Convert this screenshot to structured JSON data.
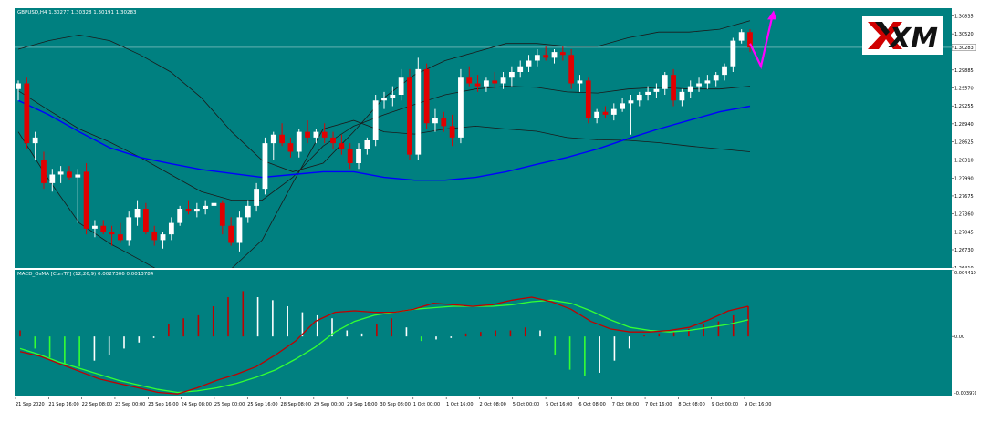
{
  "chart_header": {
    "symbol_line": "GBPUSD,H4  1.30277 1.30328 1.30191 1.30283"
  },
  "indicator_header": {
    "line": "MACD_OsMA [CurrTF] (12,26,9) 0.0027306 0.0013784"
  },
  "brand": {
    "logo_text": "XM"
  },
  "colors": {
    "background": "#008080",
    "bull_candle": "#ffffff",
    "bear_candle": "#e00000",
    "bollinger": "#1a1a1a",
    "moving_average": "#0000ff",
    "macd_line": "#c00000",
    "signal_line": "#33ff33",
    "histogram_rising": "#c00000",
    "histogram_falling": "#ffffff",
    "histogram_green": "#33ff33",
    "forecast_arrow": "#ff00ff"
  },
  "chart_data": [
    {
      "type": "candlestick",
      "title": "GBPUSD,H4",
      "price_axis_ticks": [
        "1.30835",
        "1.30520",
        "1.30283",
        "1.29885",
        "1.29570",
        "1.29255",
        "1.28940",
        "1.28625",
        "1.28310",
        "1.27990",
        "1.27675",
        "1.27360",
        "1.27045",
        "1.26730",
        "1.26410"
      ],
      "ylim": [
        1.2641,
        1.3097
      ],
      "current_price": "1.30283",
      "x_ticks": [
        "21 Sep 2020",
        "21 Sep 16:00",
        "22 Sep 08:00",
        "23 Sep 00:00",
        "23 Sep 16:00",
        "24 Sep 08:00",
        "25 Sep 00:00",
        "25 Sep 16:00",
        "28 Sep 08:00",
        "29 Sep 00:00",
        "29 Sep 16:00",
        "30 Sep 08:00",
        "1 Oct 00:00",
        "1 Oct 16:00",
        "2 Oct 08:00",
        "5 Oct 00:00",
        "5 Oct 16:00",
        "6 Oct 08:00",
        "7 Oct 00:00",
        "7 Oct 16:00",
        "8 Oct 08:00",
        "9 Oct 00:00",
        "9 Oct 16:00"
      ],
      "bollinger_upper": [
        1.3025,
        1.304,
        1.305,
        1.304,
        1.3015,
        1.2985,
        1.294,
        1.288,
        1.283,
        1.281,
        1.2825,
        1.288,
        1.294,
        1.298,
        1.3005,
        1.302,
        1.3035,
        1.3035,
        1.303,
        1.303,
        1.3045,
        1.3055,
        1.3055,
        1.306,
        1.3075
      ],
      "bollinger_middle": [
        1.2952,
        1.2918,
        1.2885,
        1.2862,
        1.2835,
        1.2805,
        1.2775,
        1.276,
        1.276,
        1.28,
        1.2855,
        1.289,
        1.291,
        1.2928,
        1.2945,
        1.2955,
        1.296,
        1.2958,
        1.295,
        1.2948,
        1.2955,
        1.2958,
        1.2955,
        1.2955,
        1.296
      ],
      "bollinger_lower": [
        1.288,
        1.2796,
        1.272,
        1.2684,
        1.2655,
        1.2625,
        1.261,
        1.264,
        1.269,
        1.279,
        1.2885,
        1.29,
        1.288,
        1.2876,
        1.2885,
        1.289,
        1.2885,
        1.2881,
        1.287,
        1.2866,
        1.2865,
        1.2861,
        1.2855,
        1.285,
        1.2845
      ],
      "moving_average": [
        1.2935,
        1.291,
        1.288,
        1.2852,
        1.2835,
        1.2824,
        1.2814,
        1.2807,
        1.28,
        1.2805,
        1.281,
        1.281,
        1.28,
        1.2795,
        1.2795,
        1.28,
        1.281,
        1.2823,
        1.2835,
        1.285,
        1.2868,
        1.2885,
        1.29,
        1.2915,
        1.2925
      ],
      "candles": [
        {
          "o": 1.2955,
          "h": 1.297,
          "l": 1.2935,
          "c": 1.2965
        },
        {
          "o": 1.2965,
          "h": 1.2975,
          "l": 1.285,
          "c": 1.286
        },
        {
          "o": 1.286,
          "h": 1.288,
          "l": 1.283,
          "c": 1.287
        },
        {
          "o": 1.283,
          "h": 1.2845,
          "l": 1.278,
          "c": 1.279
        },
        {
          "o": 1.279,
          "h": 1.2815,
          "l": 1.2775,
          "c": 1.2805
        },
        {
          "o": 1.2805,
          "h": 1.282,
          "l": 1.279,
          "c": 1.281
        },
        {
          "o": 1.281,
          "h": 1.282,
          "l": 1.2795,
          "c": 1.28
        },
        {
          "o": 1.28,
          "h": 1.2815,
          "l": 1.272,
          "c": 1.2805
        },
        {
          "o": 1.281,
          "h": 1.2825,
          "l": 1.27,
          "c": 1.271
        },
        {
          "o": 1.271,
          "h": 1.2725,
          "l": 1.2695,
          "c": 1.2715
        },
        {
          "o": 1.2715,
          "h": 1.2725,
          "l": 1.27,
          "c": 1.2705
        },
        {
          "o": 1.2705,
          "h": 1.2715,
          "l": 1.268,
          "c": 1.27
        },
        {
          "o": 1.27,
          "h": 1.272,
          "l": 1.2685,
          "c": 1.269
        },
        {
          "o": 1.269,
          "h": 1.274,
          "l": 1.268,
          "c": 1.273
        },
        {
          "o": 1.273,
          "h": 1.276,
          "l": 1.2715,
          "c": 1.2745
        },
        {
          "o": 1.2745,
          "h": 1.2755,
          "l": 1.27,
          "c": 1.2705
        },
        {
          "o": 1.2705,
          "h": 1.2715,
          "l": 1.268,
          "c": 1.269
        },
        {
          "o": 1.269,
          "h": 1.2705,
          "l": 1.2675,
          "c": 1.27
        },
        {
          "o": 1.27,
          "h": 1.273,
          "l": 1.269,
          "c": 1.272
        },
        {
          "o": 1.272,
          "h": 1.275,
          "l": 1.2715,
          "c": 1.2745
        },
        {
          "o": 1.2745,
          "h": 1.276,
          "l": 1.2735,
          "c": 1.274
        },
        {
          "o": 1.274,
          "h": 1.2755,
          "l": 1.273,
          "c": 1.2745
        },
        {
          "o": 1.2745,
          "h": 1.276,
          "l": 1.2735,
          "c": 1.275
        },
        {
          "o": 1.275,
          "h": 1.277,
          "l": 1.274,
          "c": 1.2755
        },
        {
          "o": 1.2755,
          "h": 1.276,
          "l": 1.27,
          "c": 1.2715
        },
        {
          "o": 1.2715,
          "h": 1.273,
          "l": 1.268,
          "c": 1.2685
        },
        {
          "o": 1.2685,
          "h": 1.274,
          "l": 1.267,
          "c": 1.273
        },
        {
          "o": 1.273,
          "h": 1.276,
          "l": 1.272,
          "c": 1.275
        },
        {
          "o": 1.275,
          "h": 1.279,
          "l": 1.274,
          "c": 1.278
        },
        {
          "o": 1.278,
          "h": 1.287,
          "l": 1.277,
          "c": 1.286
        },
        {
          "o": 1.286,
          "h": 1.288,
          "l": 1.283,
          "c": 1.2875
        },
        {
          "o": 1.2875,
          "h": 1.2895,
          "l": 1.2855,
          "c": 1.286
        },
        {
          "o": 1.286,
          "h": 1.287,
          "l": 1.2835,
          "c": 1.2845
        },
        {
          "o": 1.2845,
          "h": 1.2885,
          "l": 1.2835,
          "c": 1.288
        },
        {
          "o": 1.288,
          "h": 1.29,
          "l": 1.286,
          "c": 1.287
        },
        {
          "o": 1.287,
          "h": 1.2885,
          "l": 1.286,
          "c": 1.288
        },
        {
          "o": 1.288,
          "h": 1.2895,
          "l": 1.286,
          "c": 1.287
        },
        {
          "o": 1.287,
          "h": 1.288,
          "l": 1.285,
          "c": 1.286
        },
        {
          "o": 1.286,
          "h": 1.2875,
          "l": 1.284,
          "c": 1.285
        },
        {
          "o": 1.285,
          "h": 1.286,
          "l": 1.2815,
          "c": 1.2825
        },
        {
          "o": 1.2825,
          "h": 1.286,
          "l": 1.2815,
          "c": 1.285
        },
        {
          "o": 1.285,
          "h": 1.287,
          "l": 1.284,
          "c": 1.2865
        },
        {
          "o": 1.2865,
          "h": 1.2945,
          "l": 1.2855,
          "c": 1.2935
        },
        {
          "o": 1.2935,
          "h": 1.295,
          "l": 1.292,
          "c": 1.294
        },
        {
          "o": 1.294,
          "h": 1.296,
          "l": 1.2925,
          "c": 1.2945
        },
        {
          "o": 1.2945,
          "h": 1.299,
          "l": 1.2935,
          "c": 1.2975
        },
        {
          "o": 1.2975,
          "h": 1.299,
          "l": 1.283,
          "c": 1.284
        },
        {
          "o": 1.284,
          "h": 1.301,
          "l": 1.283,
          "c": 1.299
        },
        {
          "o": 1.299,
          "h": 1.3,
          "l": 1.2885,
          "c": 1.2895
        },
        {
          "o": 1.2895,
          "h": 1.292,
          "l": 1.288,
          "c": 1.2905
        },
        {
          "o": 1.2905,
          "h": 1.2915,
          "l": 1.288,
          "c": 1.289
        },
        {
          "o": 1.289,
          "h": 1.291,
          "l": 1.2855,
          "c": 1.287
        },
        {
          "o": 1.287,
          "h": 1.299,
          "l": 1.286,
          "c": 1.2975
        },
        {
          "o": 1.2975,
          "h": 1.2995,
          "l": 1.296,
          "c": 1.2965
        },
        {
          "o": 1.2965,
          "h": 1.298,
          "l": 1.295,
          "c": 1.296
        },
        {
          "o": 1.296,
          "h": 1.2975,
          "l": 1.295,
          "c": 1.297
        },
        {
          "o": 1.297,
          "h": 1.2985,
          "l": 1.2955,
          "c": 1.2965
        },
        {
          "o": 1.2965,
          "h": 1.2985,
          "l": 1.2955,
          "c": 1.2975
        },
        {
          "o": 1.2975,
          "h": 1.2995,
          "l": 1.296,
          "c": 1.2985
        },
        {
          "o": 1.2985,
          "h": 1.3005,
          "l": 1.2975,
          "c": 1.2995
        },
        {
          "o": 1.2995,
          "h": 1.3015,
          "l": 1.2985,
          "c": 1.3005
        },
        {
          "o": 1.3005,
          "h": 1.3025,
          "l": 1.2995,
          "c": 1.3015
        },
        {
          "o": 1.3015,
          "h": 1.303,
          "l": 1.3005,
          "c": 1.301
        },
        {
          "o": 1.301,
          "h": 1.3025,
          "l": 1.3,
          "c": 1.302
        },
        {
          "o": 1.302,
          "h": 1.303,
          "l": 1.3005,
          "c": 1.3015
        },
        {
          "o": 1.3015,
          "h": 1.3025,
          "l": 1.2955,
          "c": 1.2965
        },
        {
          "o": 1.2965,
          "h": 1.298,
          "l": 1.295,
          "c": 1.297
        },
        {
          "o": 1.297,
          "h": 1.2975,
          "l": 1.2895,
          "c": 1.2905
        },
        {
          "o": 1.2905,
          "h": 1.292,
          "l": 1.2895,
          "c": 1.2915
        },
        {
          "o": 1.2915,
          "h": 1.2925,
          "l": 1.2905,
          "c": 1.291
        },
        {
          "o": 1.291,
          "h": 1.293,
          "l": 1.29,
          "c": 1.292
        },
        {
          "o": 1.292,
          "h": 1.294,
          "l": 1.2915,
          "c": 1.293
        },
        {
          "o": 1.293,
          "h": 1.2945,
          "l": 1.2875,
          "c": 1.2935
        },
        {
          "o": 1.2935,
          "h": 1.295,
          "l": 1.2925,
          "c": 1.2945
        },
        {
          "o": 1.2945,
          "h": 1.296,
          "l": 1.2935,
          "c": 1.295
        },
        {
          "o": 1.295,
          "h": 1.2965,
          "l": 1.294,
          "c": 1.2955
        },
        {
          "o": 1.2955,
          "h": 1.2985,
          "l": 1.2945,
          "c": 1.298
        },
        {
          "o": 1.298,
          "h": 1.299,
          "l": 1.2925,
          "c": 1.2935
        },
        {
          "o": 1.2935,
          "h": 1.2955,
          "l": 1.2925,
          "c": 1.295
        },
        {
          "o": 1.295,
          "h": 1.297,
          "l": 1.294,
          "c": 1.296
        },
        {
          "o": 1.296,
          "h": 1.2975,
          "l": 1.295,
          "c": 1.2965
        },
        {
          "o": 1.2965,
          "h": 1.298,
          "l": 1.2955,
          "c": 1.297
        },
        {
          "o": 1.297,
          "h": 1.2985,
          "l": 1.296,
          "c": 1.298
        },
        {
          "o": 1.298,
          "h": 1.3,
          "l": 1.297,
          "c": 1.2995
        },
        {
          "o": 1.2995,
          "h": 1.3045,
          "l": 1.2985,
          "c": 1.304
        },
        {
          "o": 1.304,
          "h": 1.306,
          "l": 1.3035,
          "c": 1.3055
        },
        {
          "o": 1.3055,
          "h": 1.306,
          "l": 1.302,
          "c": 1.3028
        }
      ],
      "forecast_arrow": {
        "from": 1.3035,
        "via": 1.2995,
        "to": 1.309
      }
    },
    {
      "type": "macd_osma",
      "title": "MACD_OsMA [CurrTF] (12,26,9)",
      "axis_ticks": [
        "0.0044100",
        "0.00",
        "-0.0039700"
      ],
      "ylim": [
        -0.00397,
        0.00441
      ],
      "macd": [
        -0.001,
        -0.0013,
        -0.0018,
        -0.0023,
        -0.0028,
        -0.0031,
        -0.0034,
        -0.0037,
        -0.0038,
        -0.0034,
        -0.0029,
        -0.0025,
        -0.002,
        -0.0012,
        -0.0003,
        0.001,
        0.0016,
        0.0017,
        0.0016,
        0.0016,
        0.0018,
        0.0022,
        0.0021,
        0.002,
        0.0021,
        0.0024,
        0.0026,
        0.0023,
        0.0018,
        0.001,
        0.0005,
        0.0003,
        0.0003,
        0.0004,
        0.0006,
        0.0011,
        0.0017,
        0.002
      ],
      "signal": [
        -0.0008,
        -0.0012,
        -0.0017,
        -0.0021,
        -0.0025,
        -0.0029,
        -0.0032,
        -0.0035,
        -0.0037,
        -0.0036,
        -0.0034,
        -0.0031,
        -0.0027,
        -0.0022,
        -0.0015,
        -0.0007,
        0.0003,
        0.001,
        0.0014,
        0.0016,
        0.0018,
        0.0019,
        0.002,
        0.002,
        0.002,
        0.0021,
        0.0023,
        0.0024,
        0.0022,
        0.0017,
        0.0011,
        0.0006,
        0.0004,
        0.0003,
        0.0004,
        0.0006,
        0.0008,
        0.0011
      ],
      "histogram": [
        0.0004,
        -0.0008,
        -0.0014,
        -0.0018,
        -0.002,
        -0.0016,
        -0.0012,
        -0.0008,
        -0.0004,
        -0.0001,
        0.0008,
        0.0012,
        0.0014,
        0.002,
        0.0026,
        0.003,
        0.0026,
        0.0024,
        0.002,
        0.0016,
        0.0014,
        0.0012,
        0.0004,
        0.0002,
        0.0008,
        0.0012,
        0.0006,
        -0.0003,
        -0.0002,
        -0.0001,
        0.0002,
        0.0003,
        0.0004,
        0.0004,
        0.0006,
        0.0004,
        -0.0012,
        -0.0022,
        -0.0026,
        -0.0024,
        -0.0016,
        -0.0008,
        0.0001,
        0.0002,
        0.0003,
        0.0005,
        0.0008,
        0.001,
        0.0014,
        0.002
      ]
    }
  ]
}
